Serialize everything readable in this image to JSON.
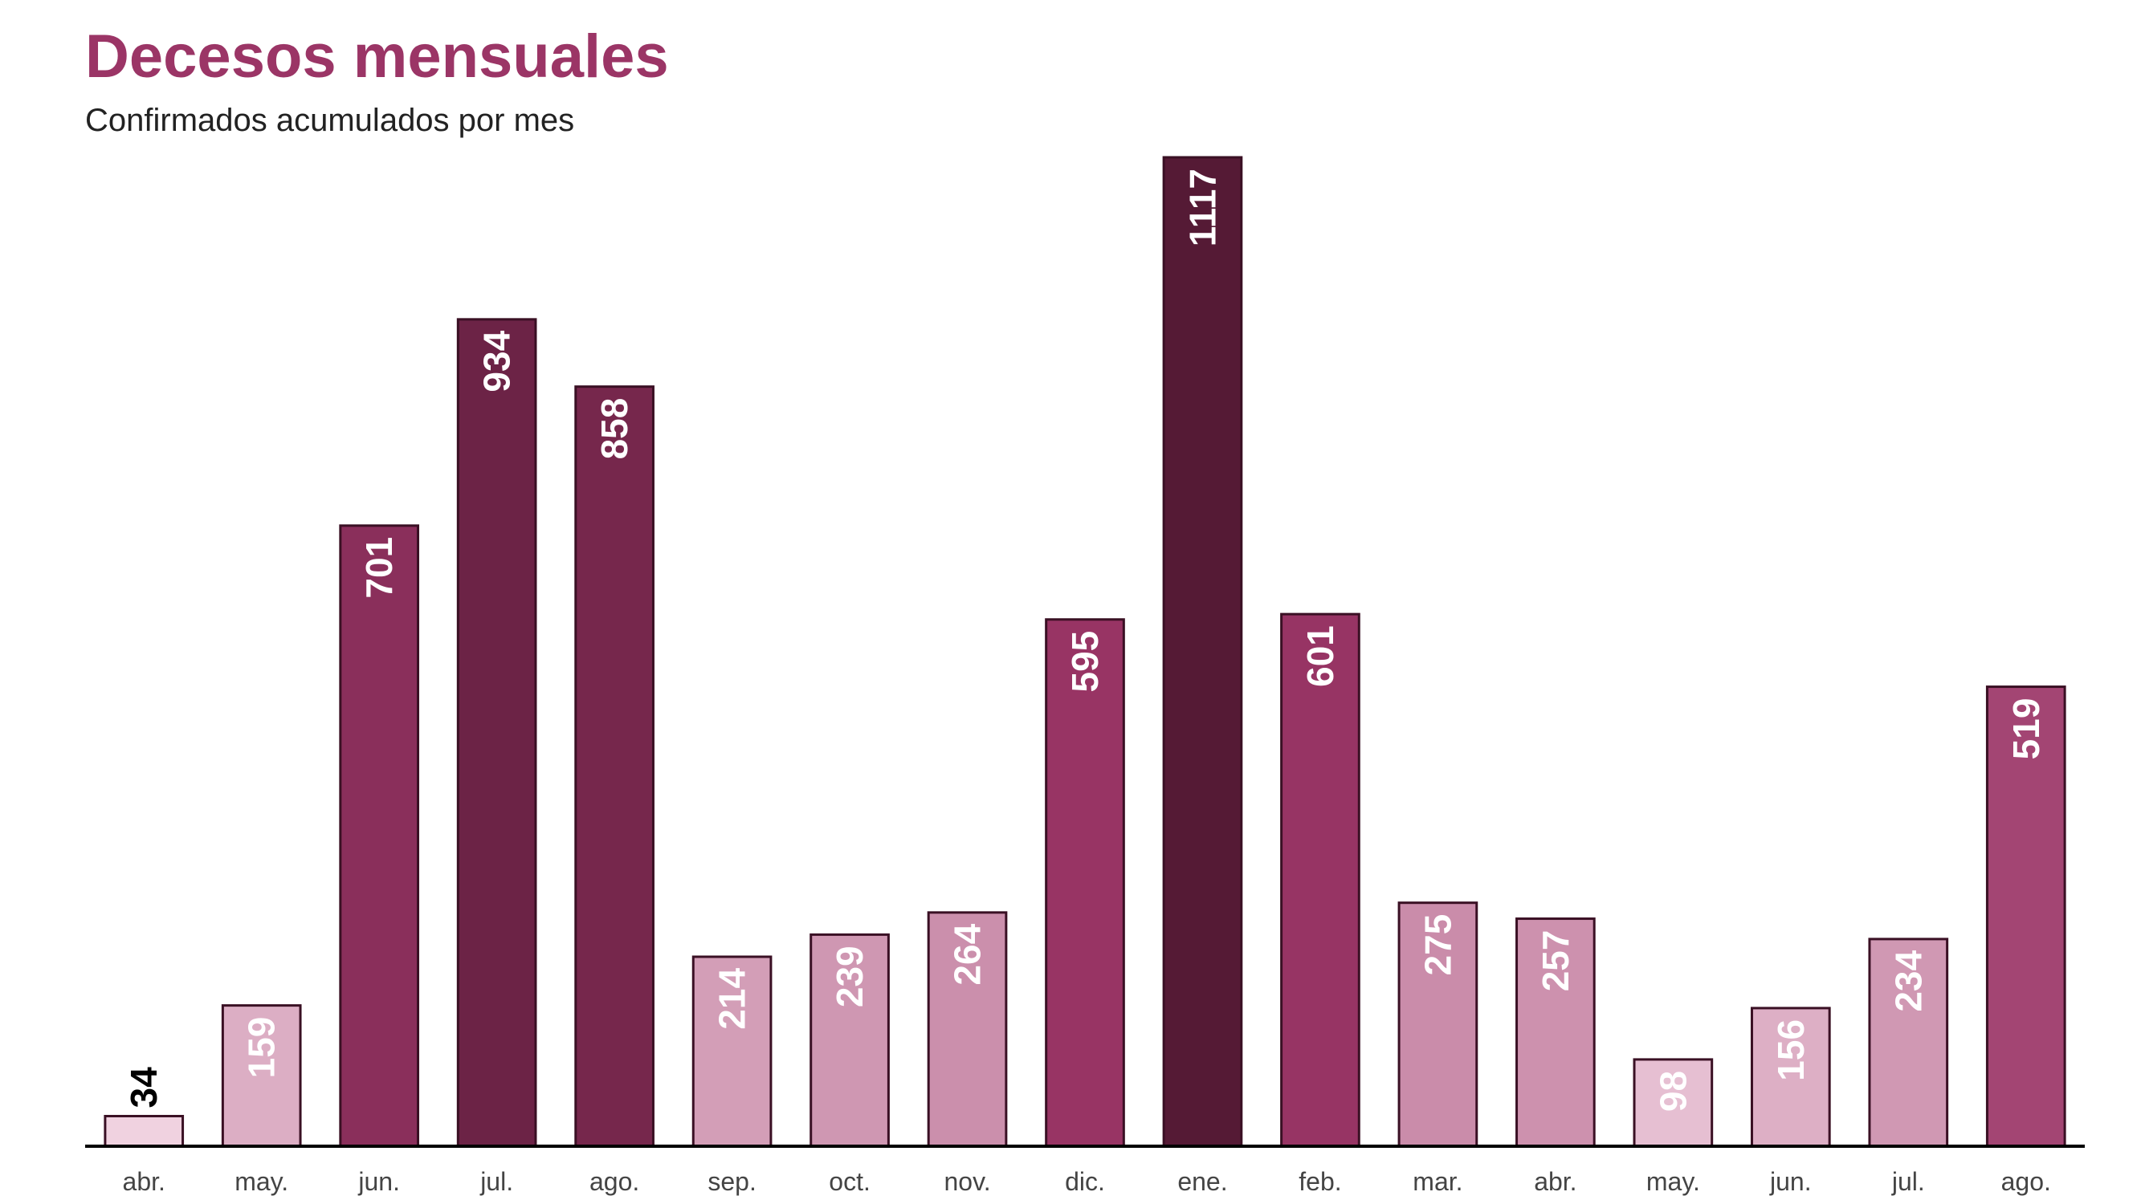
{
  "chart_data": {
    "type": "bar",
    "title": "Decesos mensuales",
    "subtitle": "Confirmados acumulados por mes",
    "categories": [
      "abr.",
      "may.",
      "jun.",
      "jul.",
      "ago.",
      "sep.",
      "oct.",
      "nov.",
      "dic.",
      "ene.",
      "feb.",
      "mar.",
      "abr.",
      "may.",
      "jun.",
      "jul.",
      "ago."
    ],
    "values": [
      34,
      159,
      701,
      934,
      858,
      214,
      239,
      264,
      595,
      1117,
      601,
      275,
      257,
      98,
      156,
      234,
      519
    ],
    "ylim": [
      0,
      1117
    ],
    "xlabel": "",
    "ylabel": "",
    "grid": false,
    "legend": "none",
    "colors": {
      "title": "#9b3566",
      "bar_min": "#f0d2e0",
      "bar_mid": "#9a3566",
      "bar_max": "#551a35",
      "bar_stroke": "#3a1024",
      "axis": "#000000",
      "label_dark": "#000000",
      "label_light": "#ffffff"
    }
  }
}
